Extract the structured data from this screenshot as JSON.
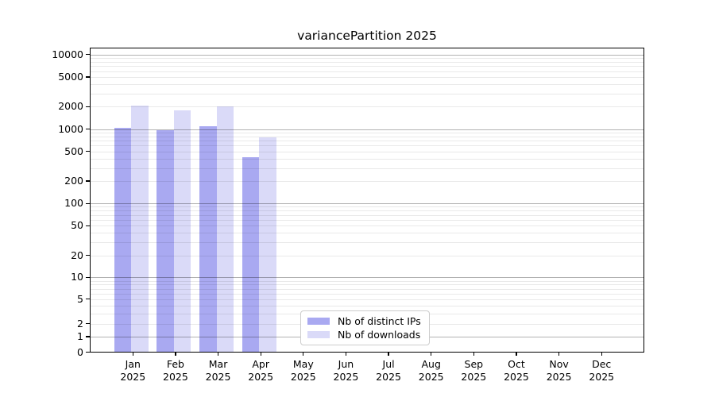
{
  "colors": {
    "background": "#ffffff",
    "frame": "#000000",
    "grid_major": "rgba(0,0,0,0.30)",
    "grid_minor": "rgba(0,0,0,0.085)",
    "bar_distinct_ips": "#a9a9f1",
    "bar_downloads": "#dadaf8"
  },
  "chart_data": {
    "type": "bar",
    "title": "variancePartition 2025",
    "categories": [
      "Jan 2025",
      "Feb 2025",
      "Mar 2025",
      "Apr 2025",
      "May 2025",
      "Jun 2025",
      "Jul 2025",
      "Aug 2025",
      "Sep 2025",
      "Oct 2025",
      "Nov 2025",
      "Dec 2025"
    ],
    "x_tick_top": [
      "Jan",
      "Feb",
      "Mar",
      "Apr",
      "May",
      "Jun",
      "Jul",
      "Aug",
      "Sep",
      "Oct",
      "Nov",
      "Dec"
    ],
    "x_tick_bottom": "2025",
    "series": [
      {
        "key": "distinct-ips",
        "name": "Nb of distinct IPs",
        "color": "#a9a9f1",
        "values": [
          1040,
          960,
          1080,
          420,
          null,
          null,
          null,
          null,
          null,
          null,
          null,
          null
        ]
      },
      {
        "key": "downloads",
        "name": "Nb of downloads",
        "color": "#dadaf8",
        "values": [
          2080,
          1770,
          2010,
          775,
          null,
          null,
          null,
          null,
          null,
          null,
          null,
          null
        ]
      }
    ],
    "y_ticks": [
      0,
      1,
      2,
      5,
      10,
      20,
      50,
      100,
      200,
      500,
      1000,
      2000,
      5000,
      10000
    ],
    "y_grid_major": [
      1,
      10,
      100,
      1000,
      10000
    ],
    "y_scale": "asinh",
    "asinh_linear_width": 2,
    "ylim": [
      0,
      12600
    ],
    "xlabel": "",
    "ylabel": "",
    "grid": true,
    "legend_position": "lower center"
  }
}
